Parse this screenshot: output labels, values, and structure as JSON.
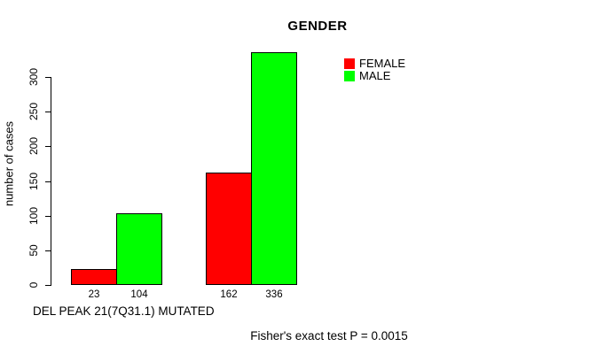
{
  "chart_data": {
    "type": "bar",
    "title": "GENDER",
    "ylabel": "number of cases",
    "xlabel": "DEL PEAK 21(7Q31.1) MUTATED",
    "footnote": "Fisher's exact test P = 0.0015",
    "series": [
      {
        "name": "FEMALE",
        "color": "#ff0000",
        "values": [
          23,
          162
        ]
      },
      {
        "name": "MALE",
        "color": "#00ff00",
        "values": [
          104,
          336
        ]
      }
    ],
    "groups": 2,
    "bar_value_labels": [
      "23",
      "104",
      "162",
      "336"
    ],
    "ylim": [
      0,
      300
    ],
    "yticks": [
      0,
      50,
      100,
      150,
      200,
      250,
      300
    ],
    "grid": false,
    "legend_position": "top-right",
    "axis_color": "#000000",
    "text_color": "#000000",
    "background": "#ffffff"
  }
}
